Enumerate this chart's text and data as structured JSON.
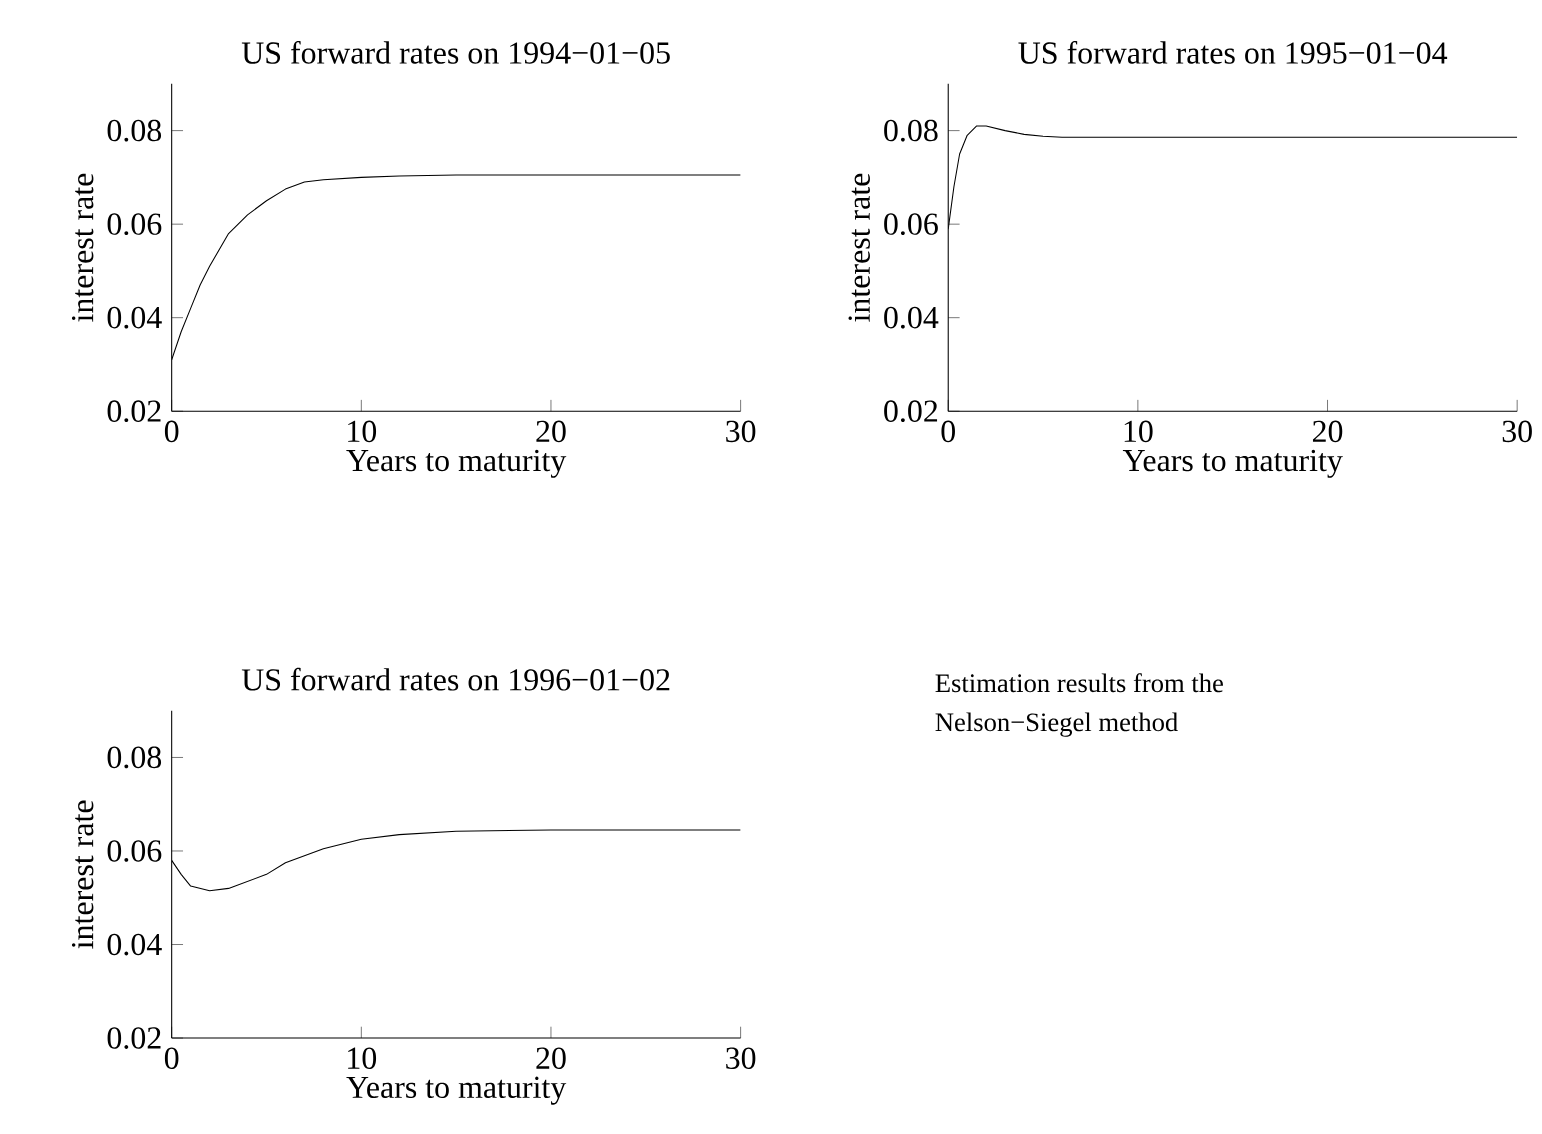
{
  "chart_data": [
    {
      "type": "line",
      "title": "US forward rates on 1994−01−05",
      "xlabel": "Years to maturity",
      "ylabel": "interest rate",
      "color": "#000000",
      "xlim": [
        0,
        30
      ],
      "ylim": [
        0.02,
        0.09
      ],
      "xticks": [
        0,
        10,
        20,
        30
      ],
      "yticks": [
        0.02,
        0.04,
        0.06,
        0.08
      ],
      "x": [
        0,
        0.5,
        1,
        1.5,
        2,
        3,
        4,
        5,
        6,
        7,
        8,
        10,
        12,
        15,
        20,
        30
      ],
      "values": [
        0.031,
        0.037,
        0.042,
        0.047,
        0.051,
        0.058,
        0.062,
        0.065,
        0.0675,
        0.069,
        0.0695,
        0.07,
        0.0703,
        0.0705,
        0.0705,
        0.0705
      ]
    },
    {
      "type": "line",
      "title": "US forward rates on 1995−01−04",
      "xlabel": "Years to maturity",
      "ylabel": "interest rate",
      "color": "#000000",
      "xlim": [
        0,
        30
      ],
      "ylim": [
        0.02,
        0.09
      ],
      "xticks": [
        0,
        10,
        20,
        30
      ],
      "yticks": [
        0.02,
        0.04,
        0.06,
        0.08
      ],
      "x": [
        0,
        0.3,
        0.6,
        1,
        1.5,
        2,
        3,
        4,
        5,
        6,
        10,
        20,
        30
      ],
      "values": [
        0.059,
        0.068,
        0.075,
        0.079,
        0.081,
        0.081,
        0.08,
        0.0792,
        0.0788,
        0.0786,
        0.0786,
        0.0786,
        0.0786
      ]
    },
    {
      "type": "line",
      "title": "US forward rates on 1996−01−02",
      "xlabel": "Years to maturity",
      "ylabel": "interest rate",
      "color": "#000000",
      "xlim": [
        0,
        30
      ],
      "ylim": [
        0.02,
        0.09
      ],
      "xticks": [
        0,
        10,
        20,
        30
      ],
      "yticks": [
        0.02,
        0.04,
        0.06,
        0.08
      ],
      "x": [
        0,
        0.5,
        1,
        2,
        3,
        4,
        5,
        6,
        8,
        10,
        12,
        15,
        20,
        30
      ],
      "values": [
        0.058,
        0.055,
        0.0525,
        0.0515,
        0.052,
        0.0535,
        0.055,
        0.0575,
        0.0605,
        0.0625,
        0.0635,
        0.0642,
        0.0645,
        0.0645
      ]
    },
    {
      "type": "other",
      "annotations": [
        "Estimation results from the",
        "Nelson−Siegel method"
      ]
    }
  ]
}
